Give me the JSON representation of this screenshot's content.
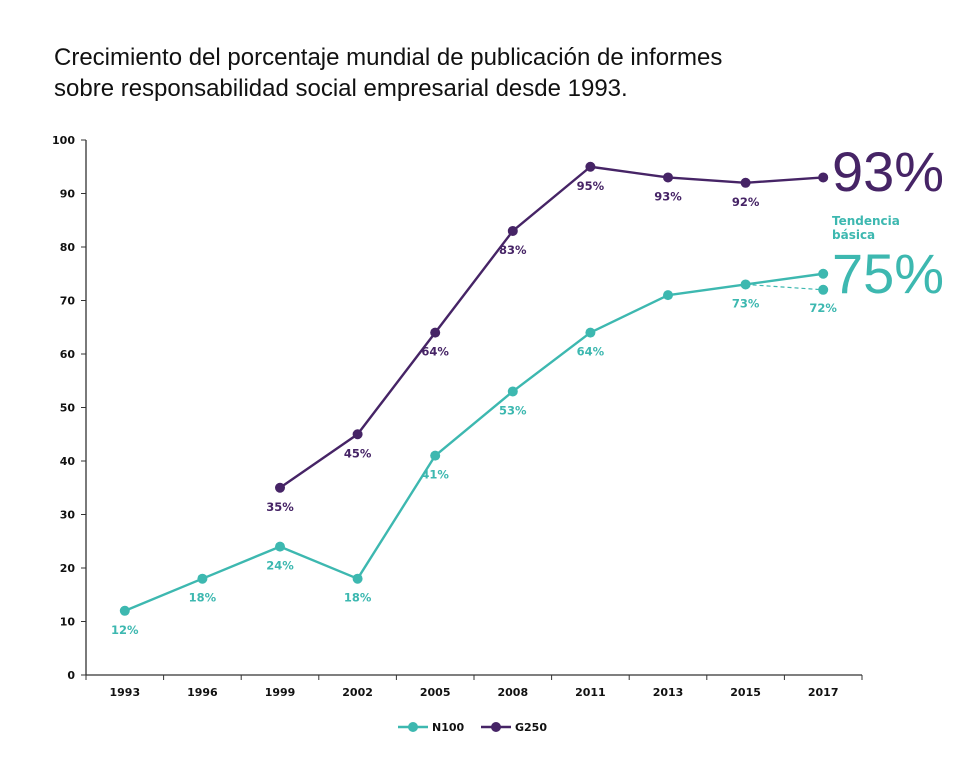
{
  "title_lines": [
    "Crecimiento del porcentaje mundial de publicación de informes",
    "sobre responsabilidad social empresarial desde 1993."
  ],
  "colors": {
    "N100": "#3db8b0",
    "G250": "#462466",
    "axis": "#333333",
    "text": "#111111"
  },
  "chart_data": {
    "type": "line",
    "title": "Crecimiento del porcentaje mundial de publicación de informes sobre responsabilidad social empresarial desde 1993.",
    "xlabel": "",
    "ylabel": "",
    "categories": [
      "1993",
      "1996",
      "1999",
      "2002",
      "2005",
      "2008",
      "2011",
      "2013",
      "2015",
      "2017"
    ],
    "ylim": [
      0,
      100
    ],
    "yticks": [
      0,
      10,
      20,
      30,
      40,
      50,
      60,
      70,
      80,
      90,
      100
    ],
    "grid": false,
    "legend_position": "bottom-center",
    "series": [
      {
        "name": "N100",
        "color": "#3db8b0",
        "values": [
          12,
          18,
          24,
          18,
          41,
          53,
          64,
          71,
          73,
          75
        ],
        "labels": [
          "12%",
          "18%",
          "24%",
          "18%",
          "41%",
          "53%",
          "64%",
          null,
          "73%",
          null
        ]
      },
      {
        "name": "G250",
        "color": "#462466",
        "values": [
          null,
          null,
          35,
          45,
          64,
          83,
          95,
          93,
          92,
          93
        ],
        "labels": [
          null,
          null,
          "35%",
          "45%",
          "64%",
          "83%",
          "95%",
          "93%",
          "92%",
          null
        ]
      },
      {
        "name": "N100 Tendencia básica",
        "color": "#3db8b0",
        "style": "dashed",
        "from_category": "2015",
        "to_category": "2017",
        "values": [
          73,
          72
        ],
        "labels": [
          null,
          "72%"
        ]
      }
    ],
    "annotations": [
      {
        "text": "93%",
        "series": "G250",
        "category": "2017",
        "style": "large"
      },
      {
        "text": "Tendencia básica",
        "series": "N100",
        "style": "note"
      },
      {
        "text": "75%",
        "series": "N100",
        "category": "2017",
        "style": "large"
      }
    ]
  },
  "legend": [
    {
      "label": "N100",
      "color": "#3db8b0"
    },
    {
      "label": "G250",
      "color": "#462466"
    }
  ],
  "annotations_text": {
    "g250_final": "93%",
    "trend_line1": "Tendencia",
    "trend_line2": "básica",
    "n100_final": "75%"
  }
}
